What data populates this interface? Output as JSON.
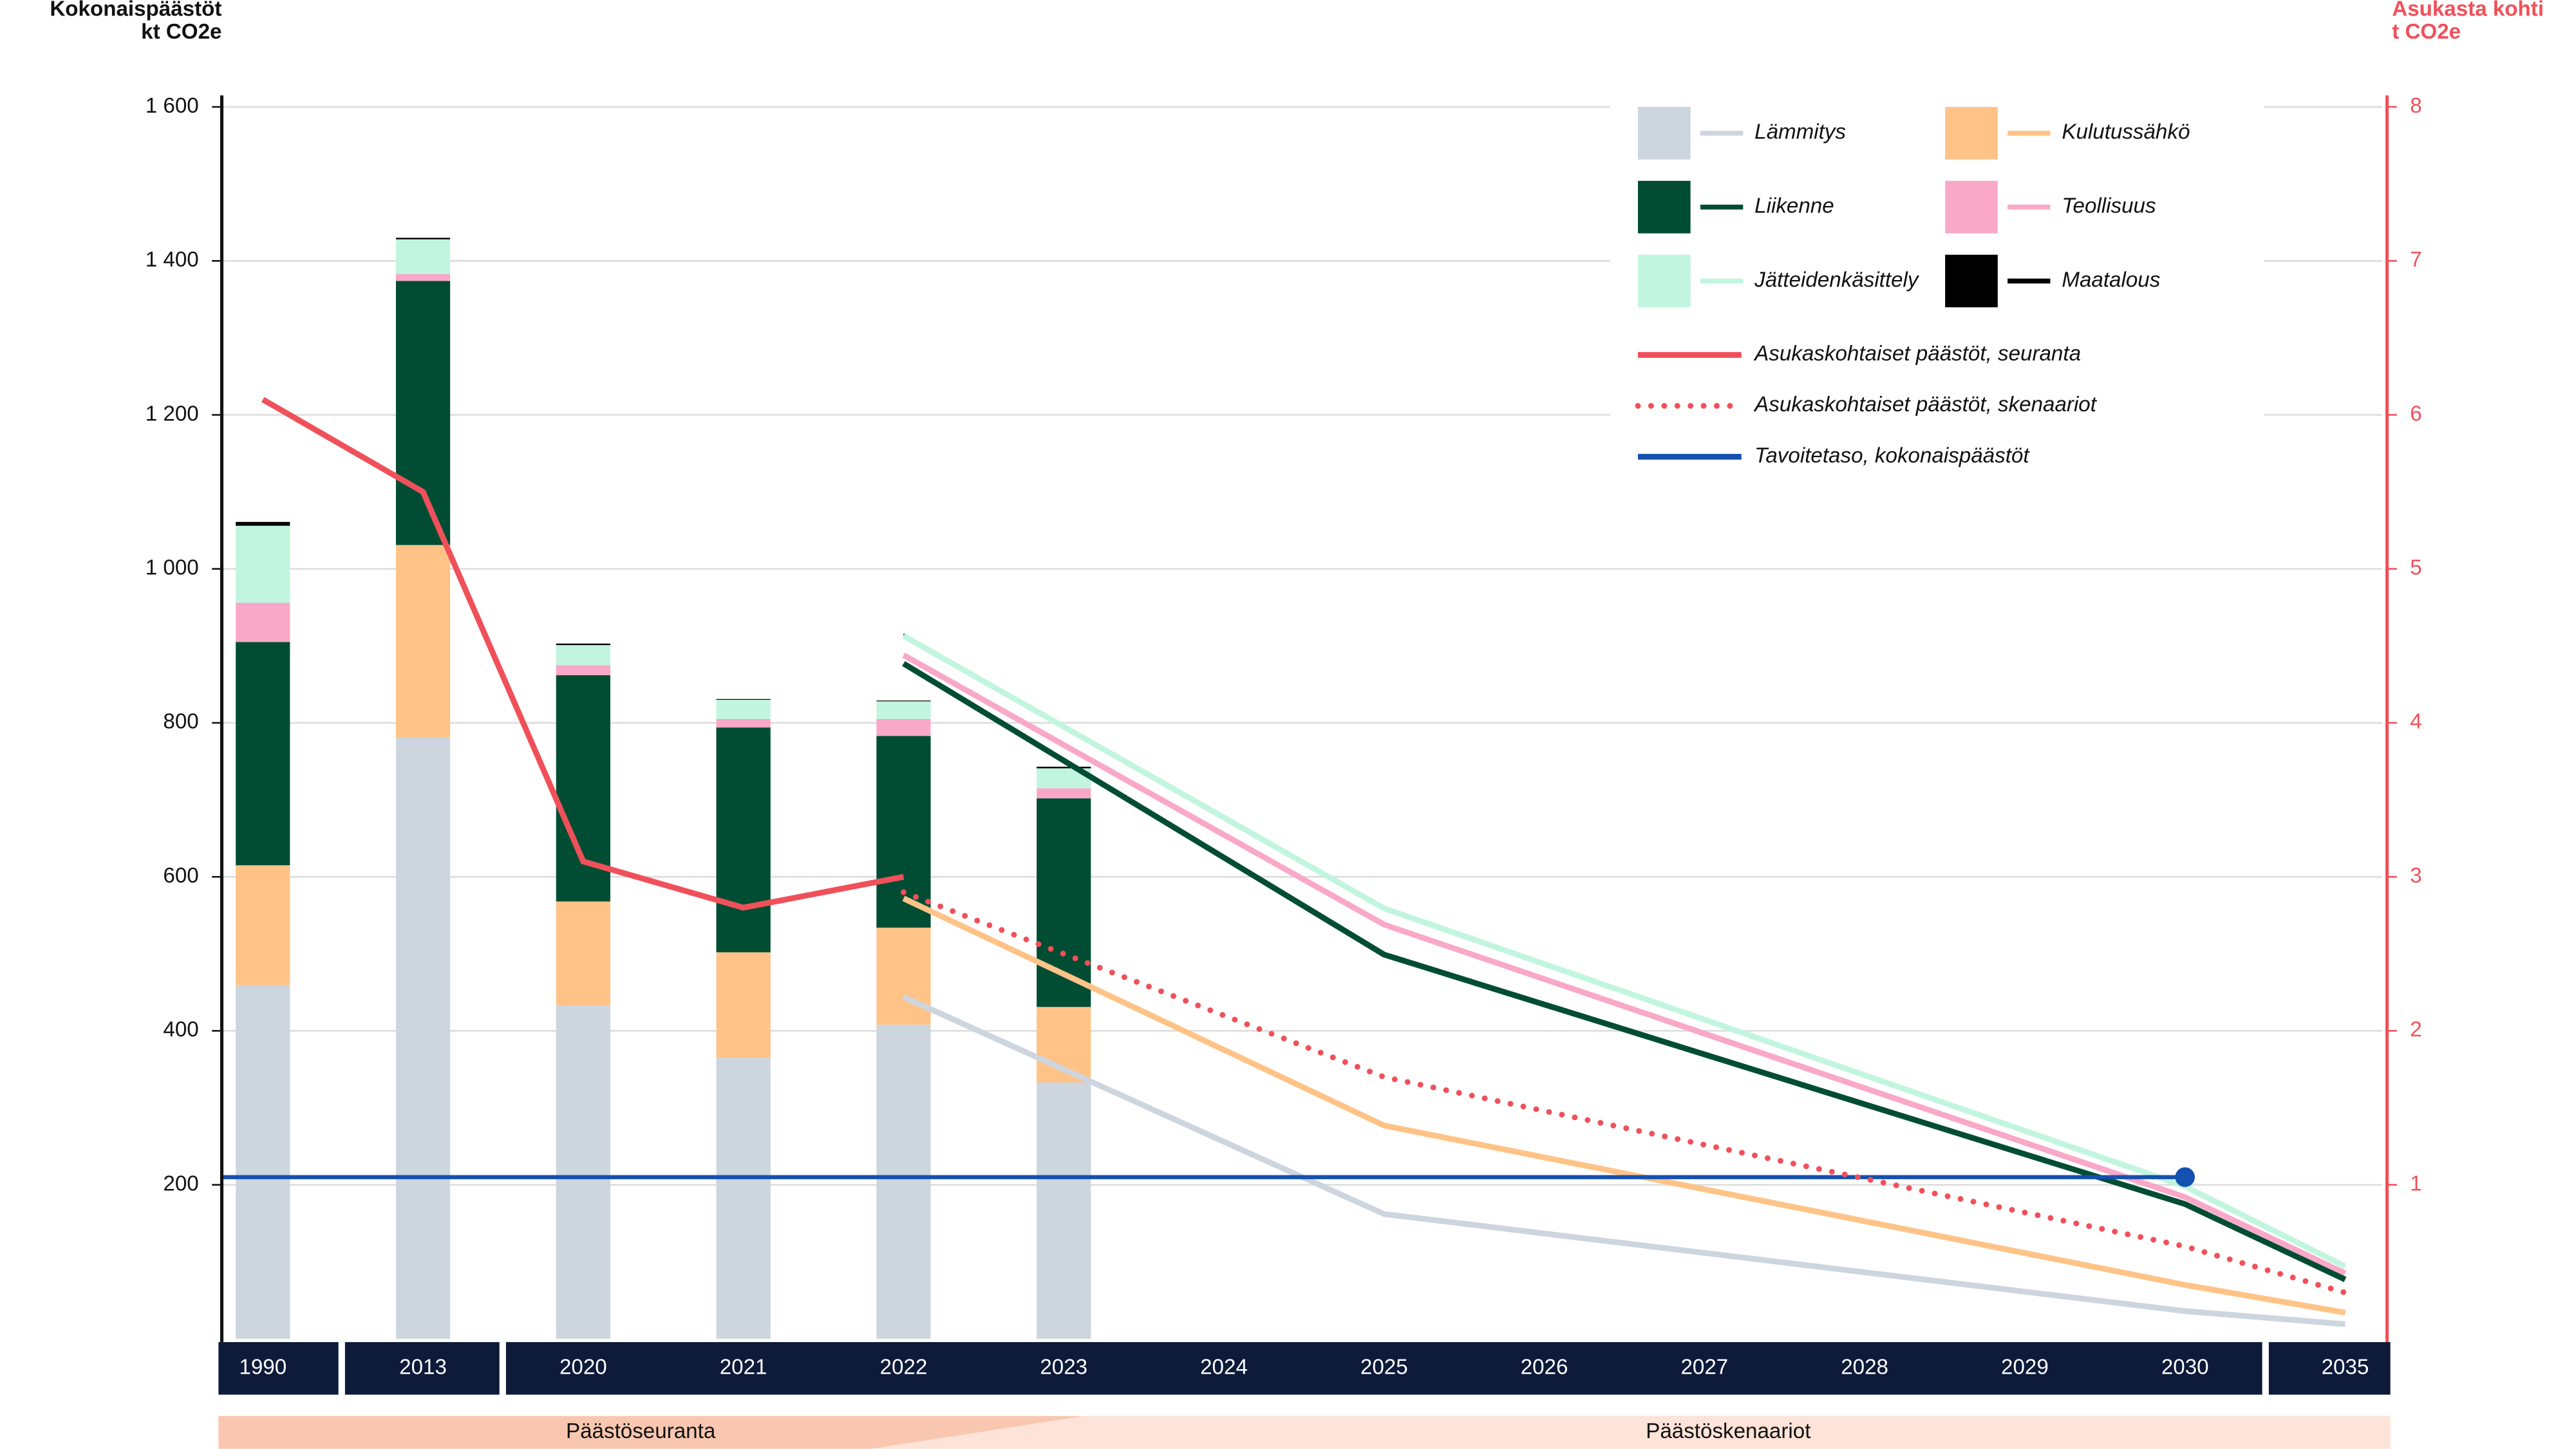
{
  "chart_data": {
    "type": "bar",
    "y_title": [
      "Kokonaispäästöt",
      "kt CO2e"
    ],
    "y2_title": [
      "Asukasta kohti",
      "t CO2e"
    ],
    "categories": [
      "1990",
      "2013",
      "2020",
      "2021",
      "2022",
      "2023",
      "2024",
      "2025",
      "2026",
      "2027",
      "2028",
      "2029",
      "2030",
      "2035"
    ],
    "ylim": [
      0,
      1600
    ],
    "yticks": [
      {
        "value": 200,
        "label": "200"
      },
      {
        "value": 400,
        "label": "400"
      },
      {
        "value": 600,
        "label": "600"
      },
      {
        "value": 800,
        "label": "800"
      },
      {
        "value": 1000,
        "label": "1 000"
      },
      {
        "value": 1200,
        "label": "1 200"
      },
      {
        "value": 1400,
        "label": "1 400"
      },
      {
        "value": 1600,
        "label": "1 600"
      }
    ],
    "y2lim": [
      0,
      8
    ],
    "y2ticks": [
      1,
      2,
      3,
      4,
      5,
      6,
      7,
      8
    ],
    "grid": true,
    "scenario_x": [
      "2022",
      "2025",
      "2030",
      "2035"
    ],
    "series": [
      {
        "name": "Lämmitys",
        "color": "#cdd5de",
        "values": [
          459,
          781,
          433,
          365,
          408,
          333,
          null,
          null,
          null,
          null,
          null,
          null,
          null,
          null
        ],
        "scenario_values": [
          444,
          162,
          36,
          19
        ]
      },
      {
        "name": "Kulutussähkö",
        "color": "#ffc387",
        "values": [
          156,
          250,
          135,
          137,
          126,
          98,
          null,
          null,
          null,
          null,
          null,
          null,
          null,
          null
        ],
        "scenario_values": [
          128,
          115,
          34,
          15
        ]
      },
      {
        "name": "Liikenne",
        "color": "#004d33",
        "values": [
          290,
          343,
          294,
          292,
          249,
          271,
          null,
          null,
          null,
          null,
          null,
          null,
          null,
          null
        ],
        "scenario_values": [
          305,
          222,
          105,
          43
        ]
      },
      {
        "name": "Teollisuus",
        "color": "#f9a8c8",
        "values": [
          51,
          9,
          13,
          11,
          22,
          13,
          null,
          null,
          null,
          null,
          null,
          null,
          null,
          null
        ],
        "scenario_values": [
          11,
          39,
          9,
          8
        ]
      },
      {
        "name": "Jätteidenkäsittely",
        "color": "#c2f5df",
        "values": [
          100,
          45,
          26,
          25,
          23,
          26,
          null,
          null,
          null,
          null,
          null,
          null,
          null,
          null
        ],
        "scenario_values": [
          25,
          21,
          14,
          9
        ]
      },
      {
        "name": "Maatalous",
        "color": "#000000",
        "values": [
          5,
          2,
          2,
          1,
          1,
          2,
          null,
          null,
          null,
          null,
          null,
          null,
          null,
          null
        ],
        "scenario_values": [
          2,
          2,
          2,
          2
        ]
      }
    ],
    "per_capita": [
      {
        "name": "Asukaskohtaiset päästöt, seuranta",
        "color": "#f0505a",
        "dotted": false,
        "x": [
          "1990",
          "2013",
          "2020",
          "2021",
          "2022"
        ],
        "values": [
          6.1,
          5.5,
          3.1,
          2.8,
          3.0
        ]
      },
      {
        "name": "Asukaskohtaiset päästöt, skenaariot",
        "color": "#f0505a",
        "dotted": true,
        "x": [
          "2022",
          "2023",
          "2025",
          "2030",
          "2035"
        ],
        "values": [
          2.9,
          2.5,
          1.7,
          0.6,
          0.3
        ]
      }
    ],
    "target": {
      "name": "Tavoitetaso, kokonaispäästöt",
      "color": "#1450b0",
      "value": 210,
      "until": "2030"
    },
    "phases": [
      "Päästöseuranta",
      "Päästöskenaariot"
    ]
  }
}
